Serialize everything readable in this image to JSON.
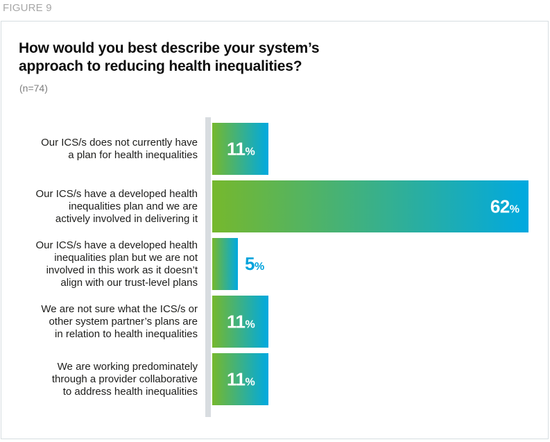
{
  "figure_label": "FIGURE 9",
  "card": {
    "title": "How would you best describe your system’s approach to reducing health inequalities?",
    "title_lines": [
      "How would you best describe your system’s",
      "approach to reducing health inequalities?"
    ],
    "sample_size": "(n=74)"
  },
  "chart_data": {
    "type": "bar",
    "orientation": "horizontal",
    "title": "How would you best describe your system’s approach to reducing health inequalities?",
    "subtitle": "(n=74)",
    "categories": [
      "Our ICS/s does not currently have a plan for health inequalities",
      "Our ICS/s have a developed health inequalities plan and we are actively involved in delivering it",
      "Our ICS/s have a developed health inequalities plan but we are not involved in this work as it doesn’t align with our trust-level plans",
      "We are not sure what the ICS/s or other system partner’s plans are in relation to health inequalities",
      "We are working predominately through a provider collaborative to address health inequalities"
    ],
    "category_lines": [
      [
        "Our ICS/s does not currently have",
        "a plan for health inequalities"
      ],
      [
        "Our ICS/s have a developed health",
        "inequalities plan and we are",
        "actively involved in delivering it"
      ],
      [
        "Our ICS/s have a developed health",
        "inequalities plan but we are not",
        "involved in this work as it doesn’t",
        "align with our trust-level plans"
      ],
      [
        "We are not sure what the ICS/s or",
        "other system partner’s plans are",
        "in relation to health inequalities"
      ],
      [
        "We are working predominately",
        "through a provider collaborative",
        "to address health inequalities"
      ]
    ],
    "values": [
      11,
      62,
      5,
      11,
      11
    ],
    "value_labels": [
      "11%",
      "62%",
      "5%",
      "11%",
      "11%"
    ],
    "value_label_positions": [
      "inside-center",
      "inside-right",
      "outside",
      "inside-center",
      "inside-center"
    ],
    "xlim": [
      0,
      62
    ],
    "grid": false,
    "legend": null,
    "colors": {
      "bar_gradient_start": "#76b82d",
      "bar_gradient_end": "#00a9e0",
      "value_inside": "#ffffff",
      "value_outside": "#00a3dc",
      "axis_line": "#d8dce0",
      "card_border": "#d6dde0",
      "figure_label": "#a6a6a6"
    }
  }
}
